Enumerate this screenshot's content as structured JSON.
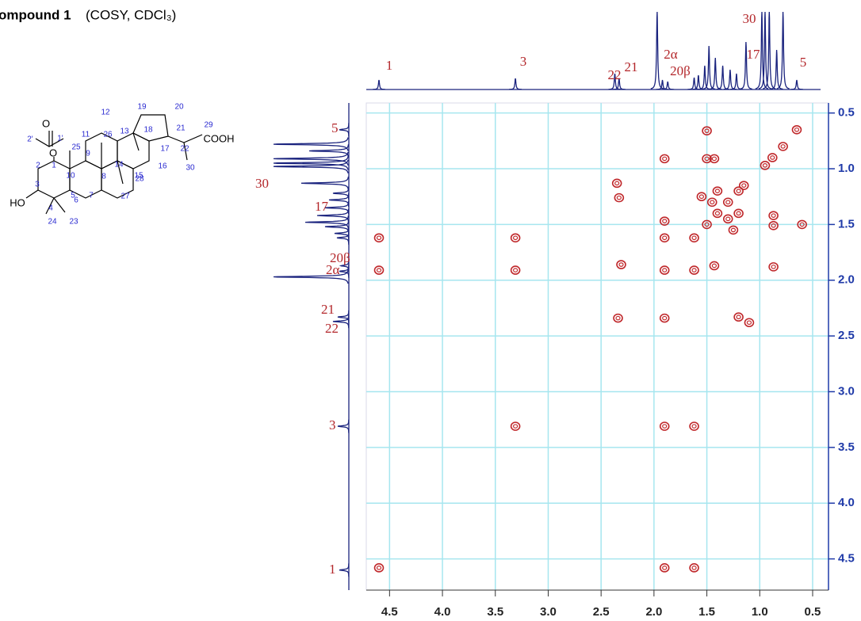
{
  "chart_data": {
    "type": "contour",
    "title": "ompound 1",
    "subtitle": "(COSY, CDCl₃)",
    "xlim": [
      4.72,
      0.35
    ],
    "ylim": [
      0.41,
      4.78
    ],
    "xticks": [
      4.5,
      {
        "value": 4,
        "label": "4.0"
      },
      3.5,
      {
        "value": 3,
        "label": "3.0"
      },
      2.5,
      {
        "value": 2,
        "label": "2.0"
      },
      1.5,
      {
        "value": 1,
        "label": "1.0"
      },
      0.5
    ],
    "yticks": [
      0.5,
      {
        "value": 1,
        "label": "1.0"
      },
      1.5,
      {
        "value": 2,
        "label": "2.0"
      },
      2.5,
      {
        "value": 3,
        "label": "3.0"
      },
      3.5,
      {
        "value": 4,
        "label": "4.0"
      },
      4.5
    ],
    "grid": true,
    "grid_color": "#a6e6ef",
    "axis_color": "#1f3aa8",
    "peak_color": "#c0282b",
    "trace_color": "#1a237e",
    "label_color": "#b3262a",
    "peaks": {
      "x": [
        4.6,
        4.6,
        4.6,
        3.31,
        3.31,
        3.31,
        2.35,
        2.33,
        2.34,
        2.31,
        1.9,
        1.9,
        1.9,
        1.9,
        1.9,
        1.9,
        1.9,
        1.62,
        1.62,
        1.62,
        1.62,
        1.5,
        1.5,
        1.43,
        1.43,
        1.5,
        1.4,
        1.3,
        1.2,
        1.15,
        1.45,
        1.3,
        1.4,
        1.2,
        1.25,
        1.55,
        1.2,
        1.1,
        0.87,
        0.87,
        0.87,
        0.6,
        0.65,
        0.78,
        0.88,
        0.95
      ],
      "y": [
        1.62,
        1.91,
        4.58,
        1.62,
        1.91,
        3.31,
        1.13,
        1.26,
        2.34,
        1.86,
        0.91,
        1.47,
        1.62,
        1.91,
        2.34,
        3.31,
        4.58,
        1.62,
        1.91,
        3.31,
        4.58,
        0.66,
        0.91,
        0.91,
        1.87,
        1.5,
        1.4,
        1.3,
        1.2,
        1.15,
        1.3,
        1.45,
        1.2,
        1.4,
        1.55,
        1.25,
        2.33,
        2.38,
        1.42,
        1.51,
        1.88,
        1.5,
        0.65,
        0.8,
        0.9,
        0.97
      ]
    },
    "spectrum": {
      "shifts": [
        4.6,
        3.31,
        2.37,
        2.33,
        1.97,
        1.92,
        1.87,
        1.62,
        1.58,
        1.52,
        1.48,
        1.42,
        1.35,
        1.28,
        1.22,
        1.13,
        0.98,
        0.95,
        0.91,
        0.84,
        0.78,
        0.65
      ],
      "heights": [
        12,
        14,
        20,
        14,
        100,
        12,
        10,
        15,
        18,
        30,
        55,
        40,
        30,
        25,
        20,
        60,
        100,
        100,
        100,
        50,
        100,
        12
      ]
    },
    "top_labels": [
      "1",
      "3",
      "22",
      "21",
      "2α",
      "20β",
      "17",
      "30",
      "5"
    ],
    "left_labels": [
      "5",
      "30",
      "17",
      "20β",
      "2α",
      "21",
      "22",
      "3",
      "1"
    ]
  },
  "structure": {
    "labels": [
      "O",
      "1'",
      "2'",
      "O",
      "1",
      "2",
      "3",
      "HO",
      "4",
      "24",
      "23",
      "5",
      "10",
      "25",
      "9",
      "11",
      "12",
      "13",
      "26",
      "8",
      "14",
      "28",
      "27",
      "7",
      "6",
      "15",
      "16",
      "17",
      "18",
      "19",
      "20",
      "21",
      "22",
      "29",
      "COOH",
      "30"
    ]
  }
}
